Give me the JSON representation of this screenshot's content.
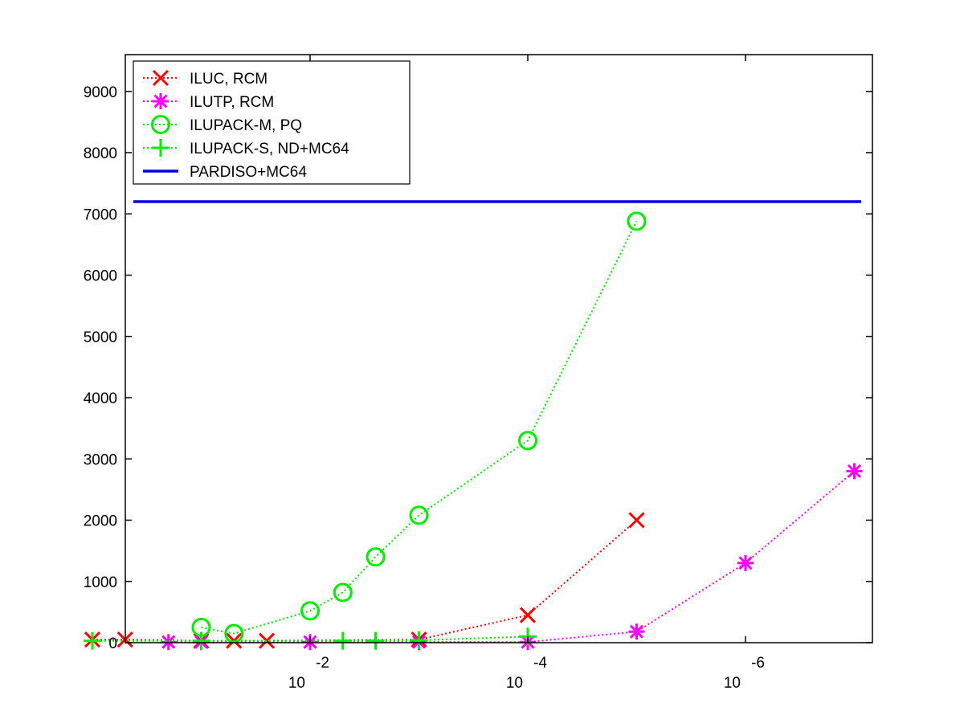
{
  "chart_data": {
    "type": "line",
    "x_scale": "log-reversed",
    "xlim": [
      1,
      1e-07
    ],
    "ylim": [
      0,
      9600
    ],
    "y_ticks": [
      0,
      1000,
      2000,
      3000,
      4000,
      5000,
      6000,
      7000,
      8000,
      9000
    ],
    "x_ticks": [
      {
        "value": 0.01,
        "base": "10",
        "exponent": "-2"
      },
      {
        "value": 0.0001,
        "base": "10",
        "exponent": "-4"
      },
      {
        "value": 1e-06,
        "base": "10",
        "exponent": "-6"
      }
    ],
    "grid": false,
    "legend_position": "top-left",
    "series": [
      {
        "name": "ILUC, RCM",
        "color": "#ff0000",
        "marker": "x",
        "line_style": "dotted",
        "x": [
          1,
          0.5,
          0.1,
          0.05,
          0.025,
          0.001,
          0.0001,
          1e-05
        ],
        "y": [
          50,
          50,
          30,
          30,
          30,
          50,
          450,
          2000
        ]
      },
      {
        "name": "ILUTP, RCM",
        "color": "#ff00ff",
        "marker": "asterisk",
        "line_style": "dotted",
        "x": [
          0.2,
          0.1,
          0.01,
          0.001,
          0.0001,
          1e-05,
          1e-06,
          1e-07
        ],
        "y": [
          10,
          10,
          10,
          10,
          10,
          180,
          1300,
          2800
        ]
      },
      {
        "name": "ILUPACK-M, PQ",
        "color": "#00ee00",
        "marker": "circle",
        "line_style": "dotted",
        "x": [
          0.1,
          0.05,
          0.01,
          0.005,
          0.0025,
          0.001,
          0.0001,
          1e-05
        ],
        "y": [
          250,
          150,
          520,
          820,
          1400,
          2080,
          3300,
          6880
        ]
      },
      {
        "name": "ILUPACK-S, ND+MC64",
        "color": "#00ee00",
        "marker": "plus",
        "line_style": "dotted",
        "x": [
          1,
          0.1,
          0.005,
          0.0025,
          0.001,
          0.0001
        ],
        "y": [
          30,
          30,
          30,
          30,
          40,
          100
        ]
      },
      {
        "name": "PARDISO+MC64",
        "color": "#0000dd",
        "marker": "none",
        "line_style": "solid",
        "x": [
          1,
          1e-07
        ],
        "y": [
          7200,
          7200
        ]
      }
    ]
  }
}
